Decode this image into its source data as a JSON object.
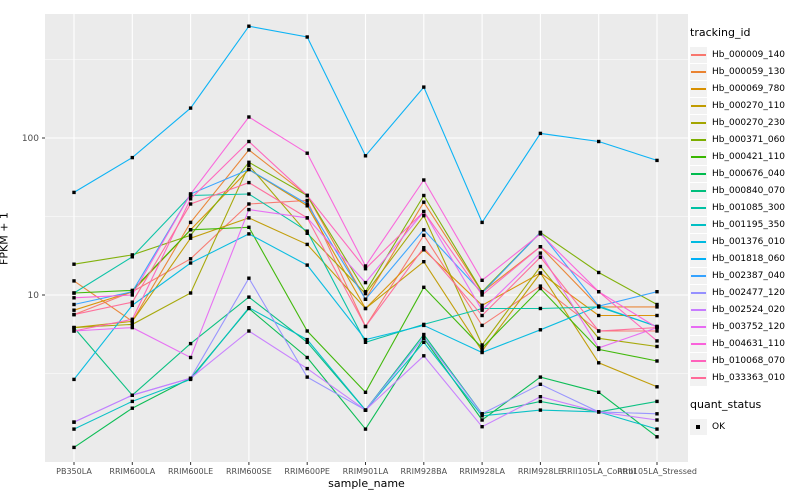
{
  "chart_data": {
    "type": "line",
    "title": "",
    "xlabel": "sample_name",
    "ylabel": "FPKM + 1",
    "y_scale": "log10",
    "y_breaks": [
      10,
      100
    ],
    "y_break_labels": [
      "10",
      "100"
    ],
    "y_minor_breaks": [
      3.162,
      31.62,
      316.23
    ],
    "ylim": [
      0.85,
      620
    ],
    "grid": true,
    "legend_position": "right",
    "point_shape": "filled-square",
    "point_color": "#000000",
    "categories": [
      "PB350LA",
      "RRIM600LA",
      "RRIM600LE",
      "RRIM600SE",
      "RRIM600PE",
      "RRIM901LA",
      "RRIM928BA",
      "RRIM928LA",
      "RRIM928LE",
      "RRII105LA_Control",
      "RRII105LA_Stressed"
    ],
    "series": [
      {
        "name": "Hb_000009_140",
        "color": "#F8766D",
        "values": [
          7.5,
          10.5,
          17,
          38,
          40,
          6.3,
          24,
          6.4,
          11.4,
          5.9,
          5.9
        ]
      },
      {
        "name": "Hb_000059_130",
        "color": "#EA8331",
        "values": [
          12.3,
          6.8,
          29,
          84,
          43,
          9.4,
          39,
          10.4,
          20.3,
          8.4,
          8.4
        ]
      },
      {
        "name": "Hb_000069_780",
        "color": "#D89000",
        "values": [
          8.0,
          10.5,
          26,
          63,
          37,
          8.2,
          19.4,
          8.6,
          13.8,
          7.4,
          7.4
        ]
      },
      {
        "name": "Hb_000270_110",
        "color": "#C09B00",
        "values": [
          6.2,
          6.8,
          23,
          31,
          21,
          8.2,
          16.3,
          4.4,
          13.8,
          3.7,
          2.6
        ]
      },
      {
        "name": "Hb_000270_230",
        "color": "#A3A500",
        "values": [
          6.2,
          6.5,
          10.3,
          67,
          24.7,
          10.2,
          32,
          4.8,
          15.2,
          5.3,
          4.7
        ]
      },
      {
        "name": "Hb_000371_060",
        "color": "#7CAE00",
        "values": [
          15.7,
          18,
          24,
          70,
          43,
          10.5,
          43,
          10.5,
          25,
          13.9,
          8.7
        ]
      },
      {
        "name": "Hb_000421_110",
        "color": "#39B600",
        "values": [
          10.3,
          10.7,
          26,
          27,
          5.9,
          2.4,
          11.2,
          4.6,
          11.0,
          4.5,
          3.8
        ]
      },
      {
        "name": "Hb_000676_040",
        "color": "#00BB4E",
        "values": [
          1.07,
          1.9,
          2.95,
          8.2,
          4.0,
          1.4,
          5.3,
          1.6,
          3.0,
          2.4,
          1.25
        ]
      },
      {
        "name": "Hb_000840_070",
        "color": "#00BF7D",
        "values": [
          6.2,
          2.3,
          4.9,
          9.7,
          5.0,
          1.85,
          5.6,
          1.75,
          2.1,
          1.8,
          2.1
        ]
      },
      {
        "name": "Hb_001085_300",
        "color": "#00C1A3",
        "values": [
          10.3,
          17.5,
          43,
          44,
          25.5,
          5.0,
          6.5,
          8.2,
          8.2,
          8.4,
          6.3
        ]
      },
      {
        "name": "Hb_001195_350",
        "color": "#00BFC4",
        "values": [
          1.4,
          2.1,
          2.9,
          8.3,
          5.2,
          1.85,
          5.0,
          1.7,
          1.85,
          1.8,
          1.4
        ]
      },
      {
        "name": "Hb_001376_010",
        "color": "#00BAE0",
        "values": [
          2.9,
          8.6,
          16,
          24.5,
          15.5,
          5.2,
          6.4,
          4.3,
          6.0,
          8.5,
          6.3
        ]
      },
      {
        "name": "Hb_001818_060",
        "color": "#00B0F6",
        "values": [
          45,
          75,
          155,
          515,
          440,
          77,
          211,
          29,
          107,
          95,
          72
        ]
      },
      {
        "name": "Hb_002387_040",
        "color": "#35A2FF",
        "values": [
          8.7,
          10.5,
          44,
          63,
          38,
          9.4,
          26,
          10.3,
          25,
          8.5,
          10.5
        ]
      },
      {
        "name": "Hb_002477_120",
        "color": "#9590FF",
        "values": [
          1.55,
          2.3,
          2.95,
          12.8,
          3.0,
          1.85,
          5.4,
          1.75,
          2.7,
          1.8,
          1.75
        ]
      },
      {
        "name": "Hb_002524_020",
        "color": "#C77CFF",
        "values": [
          1.55,
          2.3,
          2.95,
          5.9,
          3.4,
          1.85,
          4.1,
          1.45,
          2.25,
          1.8,
          1.6
        ]
      },
      {
        "name": "Hb_003752_120",
        "color": "#E76BF3",
        "values": [
          5.9,
          6.2,
          4.0,
          35,
          31,
          12.0,
          34,
          8.0,
          18.5,
          4.6,
          6.2
        ]
      },
      {
        "name": "Hb_004631_110",
        "color": "#FA62DB",
        "values": [
          9.6,
          10.0,
          44,
          136,
          80,
          15.3,
          54,
          12.4,
          24.5,
          10.5,
          6.2
        ]
      },
      {
        "name": "Hb_010068_070",
        "color": "#FF62BC",
        "values": [
          5.9,
          7.0,
          41,
          95,
          43,
          14.7,
          34,
          10.0,
          20.3,
          10.5,
          5.1
        ]
      },
      {
        "name": "Hb_033363_010",
        "color": "#FF6A98",
        "values": [
          7.5,
          9.0,
          38,
          52,
          31,
          6.3,
          20,
          7.4,
          17.4,
          5.9,
          6.2
        ]
      }
    ]
  },
  "legend": {
    "tracking_title": "tracking_id",
    "quant_title": "quant_status",
    "quant_ok_label": "OK"
  },
  "panel": {
    "bg": "#EBEBEB",
    "grid_color": "#FFFFFF",
    "tick_color": "#333333",
    "tick_label_color": "#4D4D4D"
  }
}
